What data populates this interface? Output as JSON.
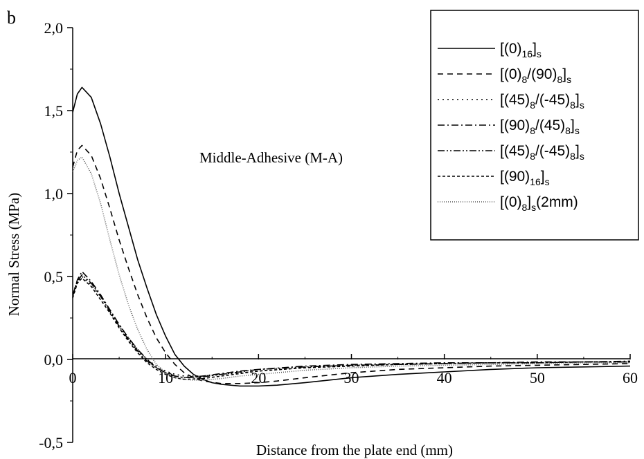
{
  "panel_label": "b",
  "chart_data": {
    "type": "line",
    "title": "",
    "annotation": "Middle-Adhesive (M-A)",
    "xlabel": "Distance from the plate end (mm)",
    "ylabel": "Normal Stress (MPa)",
    "xlim": [
      0,
      60
    ],
    "ylim": [
      -0.5,
      2.0
    ],
    "xticks": [
      0,
      10,
      20,
      30,
      40,
      50,
      60
    ],
    "xtick_labels": [
      "0",
      "10",
      "20",
      "30",
      "40",
      "50",
      "60"
    ],
    "yticks": [
      -0.5,
      0.0,
      0.5,
      1.0,
      1.5,
      2.0
    ],
    "ytick_labels": [
      "-0,5",
      "0,0",
      "0,5",
      "1,0",
      "1,5",
      "2,0"
    ],
    "grid": false,
    "legend_position": "top-right",
    "series": [
      {
        "name": "[(0)16]s",
        "legend": [
          {
            "t": "[(0)",
            "s": ""
          },
          {
            "t": "16",
            "s": "sub"
          },
          {
            "t": "]",
            "s": ""
          },
          {
            "t": "s",
            "s": "sub"
          }
        ],
        "dash": "solid",
        "x": [
          0,
          0.5,
          1,
          2,
          3,
          4,
          5,
          6,
          7,
          8,
          9,
          10,
          11,
          12,
          13,
          14,
          15,
          16,
          18,
          20,
          22,
          25,
          30,
          35,
          40,
          45,
          50,
          55,
          60
        ],
        "y": [
          1.49,
          1.6,
          1.64,
          1.58,
          1.42,
          1.22,
          1.0,
          0.8,
          0.6,
          0.43,
          0.27,
          0.14,
          0.03,
          -0.04,
          -0.09,
          -0.12,
          -0.14,
          -0.15,
          -0.16,
          -0.16,
          -0.155,
          -0.14,
          -0.11,
          -0.09,
          -0.075,
          -0.06,
          -0.05,
          -0.045,
          -0.04
        ]
      },
      {
        "name": "[(0)8/(90)8]s",
        "legend": [
          {
            "t": "[(0)",
            "s": ""
          },
          {
            "t": "8",
            "s": "sub"
          },
          {
            "t": "/(90)",
            "s": ""
          },
          {
            "t": "8",
            "s": "sub"
          },
          {
            "t": "]",
            "s": ""
          },
          {
            "t": "s",
            "s": "sub"
          }
        ],
        "dash": "8,6",
        "x": [
          0,
          0.5,
          1,
          2,
          3,
          4,
          5,
          6,
          7,
          8,
          9,
          10,
          11,
          12,
          13,
          14,
          16,
          18,
          20,
          22,
          25,
          30,
          35,
          40,
          45,
          50,
          55,
          60
        ],
        "y": [
          1.16,
          1.26,
          1.29,
          1.23,
          1.09,
          0.91,
          0.72,
          0.55,
          0.39,
          0.25,
          0.13,
          0.04,
          -0.03,
          -0.08,
          -0.11,
          -0.13,
          -0.145,
          -0.145,
          -0.14,
          -0.13,
          -0.11,
          -0.08,
          -0.06,
          -0.05,
          -0.04,
          -0.035,
          -0.03,
          -0.025
        ]
      },
      {
        "name": "[(45)8/(-45)8]s",
        "legend": [
          {
            "t": "[(45)",
            "s": ""
          },
          {
            "t": "8",
            "s": "sub"
          },
          {
            "t": "/(-45)",
            "s": ""
          },
          {
            "t": "8",
            "s": "sub"
          },
          {
            "t": "]",
            "s": ""
          },
          {
            "t": "s",
            "s": "sub"
          }
        ],
        "dash": "2,5",
        "x": [
          0,
          0.5,
          1,
          2,
          3,
          4,
          5,
          6,
          7,
          8,
          9,
          10,
          11,
          12,
          14,
          16,
          18,
          20,
          25,
          30,
          35,
          40,
          45,
          50,
          55,
          60
        ],
        "y": [
          0.4,
          0.47,
          0.5,
          0.45,
          0.38,
          0.3,
          0.21,
          0.13,
          0.06,
          0.0,
          -0.04,
          -0.07,
          -0.09,
          -0.1,
          -0.1,
          -0.09,
          -0.08,
          -0.07,
          -0.05,
          -0.035,
          -0.03,
          -0.025,
          -0.02,
          -0.02,
          -0.015,
          -0.015
        ]
      },
      {
        "name": "[(90)8/(45)8]s",
        "legend": [
          {
            "t": "[(90)",
            "s": ""
          },
          {
            "t": "8",
            "s": "sub"
          },
          {
            "t": "/(45)",
            "s": ""
          },
          {
            "t": "8",
            "s": "sub"
          },
          {
            "t": "]",
            "s": ""
          },
          {
            "t": "s",
            "s": "sub"
          }
        ],
        "dash": "10,4,2,4",
        "x": [
          0,
          0.5,
          1,
          2,
          3,
          4,
          5,
          6,
          7,
          8,
          9,
          10,
          11,
          12,
          14,
          16,
          18,
          20,
          25,
          30,
          35,
          40,
          45,
          50,
          55,
          60
        ],
        "y": [
          0.38,
          0.48,
          0.53,
          0.47,
          0.39,
          0.3,
          0.21,
          0.13,
          0.06,
          0.0,
          -0.05,
          -0.08,
          -0.1,
          -0.11,
          -0.1,
          -0.085,
          -0.07,
          -0.06,
          -0.04,
          -0.03,
          -0.025,
          -0.02,
          -0.02,
          -0.015,
          -0.015,
          -0.01
        ]
      },
      {
        "name": "[(45)8/(-45)8]s",
        "legend": [
          {
            "t": "[(45)",
            "s": ""
          },
          {
            "t": "8",
            "s": "sub"
          },
          {
            "t": "/(-45)",
            "s": ""
          },
          {
            "t": "8",
            "s": "sub"
          },
          {
            "t": "]",
            "s": ""
          },
          {
            "t": "s",
            "s": "sub"
          }
        ],
        "dash": "10,3,2,3,2,3",
        "x": [
          0,
          0.5,
          1,
          2,
          3,
          4,
          5,
          6,
          7,
          8,
          9,
          10,
          11,
          12,
          14,
          16,
          18,
          20,
          25,
          30,
          35,
          40,
          45,
          50,
          55,
          60
        ],
        "y": [
          0.39,
          0.47,
          0.51,
          0.46,
          0.38,
          0.29,
          0.2,
          0.12,
          0.05,
          -0.01,
          -0.05,
          -0.08,
          -0.1,
          -0.11,
          -0.105,
          -0.09,
          -0.075,
          -0.06,
          -0.045,
          -0.035,
          -0.03,
          -0.025,
          -0.02,
          -0.02,
          -0.015,
          -0.015
        ]
      },
      {
        "name": "[(90)16]s",
        "legend": [
          {
            "t": "[(90)",
            "s": ""
          },
          {
            "t": "16",
            "s": "sub"
          },
          {
            "t": "]",
            "s": ""
          },
          {
            "t": "s",
            "s": "sub"
          }
        ],
        "dash": "4,3",
        "x": [
          0,
          0.5,
          1,
          2,
          3,
          4,
          5,
          6,
          7,
          8,
          9,
          10,
          11,
          12,
          14,
          16,
          18,
          20,
          25,
          30,
          35,
          40,
          45,
          50,
          55,
          60
        ],
        "y": [
          0.37,
          0.46,
          0.49,
          0.44,
          0.36,
          0.28,
          0.19,
          0.11,
          0.04,
          -0.02,
          -0.06,
          -0.09,
          -0.11,
          -0.12,
          -0.115,
          -0.1,
          -0.085,
          -0.07,
          -0.05,
          -0.04,
          -0.03,
          -0.025,
          -0.02,
          -0.02,
          -0.015,
          -0.015
        ]
      },
      {
        "name": "[(0)8]s(2mm)",
        "legend": [
          {
            "t": "[(0)",
            "s": ""
          },
          {
            "t": "8",
            "s": "sub"
          },
          {
            "t": "]",
            "s": ""
          },
          {
            "t": "s",
            "s": "sub"
          },
          {
            "t": "(2mm)",
            "s": ""
          }
        ],
        "dash": "1,2",
        "x": [
          0,
          0.5,
          1,
          2,
          3,
          4,
          5,
          6,
          7,
          8,
          9,
          10,
          11,
          12,
          13,
          14,
          16,
          18,
          20,
          25,
          30,
          35,
          40,
          45,
          50,
          55,
          60
        ],
        "y": [
          1.13,
          1.2,
          1.22,
          1.12,
          0.94,
          0.72,
          0.51,
          0.33,
          0.18,
          0.06,
          -0.03,
          -0.08,
          -0.11,
          -0.12,
          -0.125,
          -0.125,
          -0.115,
          -0.1,
          -0.09,
          -0.065,
          -0.05,
          -0.04,
          -0.035,
          -0.03,
          -0.025,
          -0.02,
          -0.02
        ]
      }
    ]
  }
}
